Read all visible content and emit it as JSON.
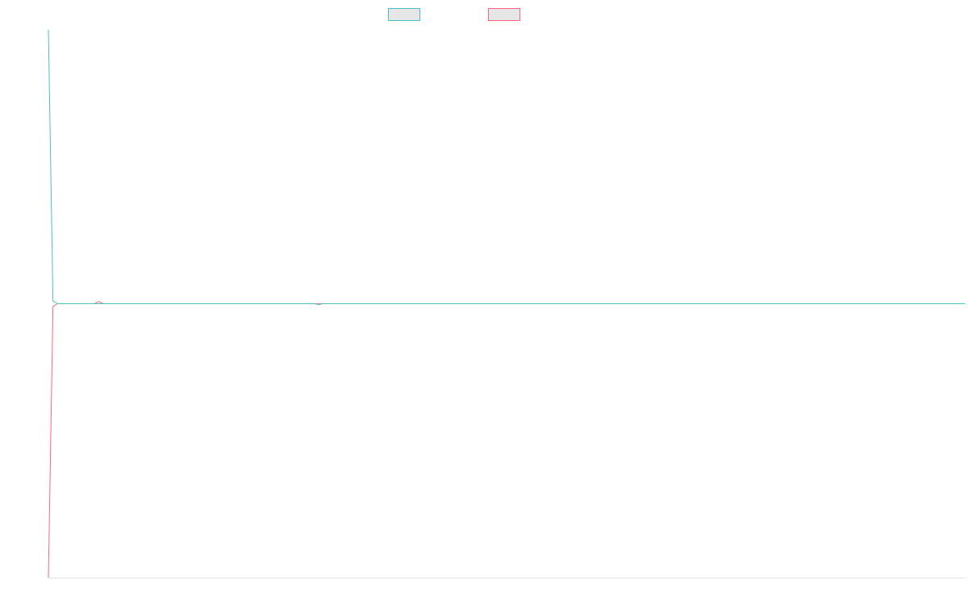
{
  "chart_data": {
    "type": "line",
    "title": "",
    "xlabel": "",
    "ylabel": "",
    "grid": false,
    "legend_position": "top-center",
    "ylim": [
      -1,
      1
    ],
    "x": [
      0,
      1,
      2,
      3,
      4,
      5,
      6,
      7,
      8,
      9,
      10,
      11,
      12,
      13,
      14,
      15,
      16,
      17,
      18,
      19,
      20,
      21,
      22,
      23,
      24,
      25,
      26,
      27,
      28,
      29,
      30,
      31,
      32,
      33,
      34,
      35,
      36,
      37,
      38,
      39,
      40,
      41,
      42,
      43,
      44,
      45,
      46,
      47,
      48,
      49,
      50,
      51,
      52,
      53,
      54,
      55,
      56,
      57,
      58,
      59,
      60,
      61,
      62,
      63,
      64,
      65,
      66,
      67,
      68,
      69,
      70,
      71,
      72,
      73,
      74,
      75,
      76,
      77,
      78,
      79,
      80,
      81,
      82,
      83,
      84,
      85,
      86,
      87,
      88,
      89,
      90,
      91,
      92,
      93,
      94,
      95,
      96,
      97,
      98,
      99,
      100,
      101,
      102,
      103,
      104,
      105,
      106,
      107,
      108,
      109,
      110,
      111,
      112,
      113,
      114,
      115,
      116,
      117,
      118,
      119,
      120,
      121,
      122,
      123,
      124,
      125,
      126,
      127,
      128,
      129,
      130,
      131,
      132,
      133,
      134,
      135,
      136,
      137,
      138,
      139,
      140,
      141,
      142,
      143,
      144,
      145,
      146,
      147,
      148,
      149,
      150,
      151,
      152,
      153,
      154,
      155,
      156,
      157,
      158,
      159,
      160,
      161,
      162,
      163,
      164,
      165,
      166,
      167,
      168,
      169,
      170,
      171,
      172,
      173,
      174,
      175,
      176,
      177,
      178,
      179,
      180,
      181,
      182,
      183,
      184,
      185,
      186,
      187,
      188,
      189,
      190,
      191,
      192,
      193,
      194,
      195,
      196,
      197,
      198,
      199,
      200
    ],
    "series": [
      {
        "name": "",
        "color": "#4bc0c0",
        "values": [
          1,
          0.01,
          0,
          0,
          0,
          0,
          0,
          0,
          0,
          0,
          0,
          0,
          0,
          0,
          0,
          0,
          0,
          0,
          0,
          0,
          0,
          0,
          0,
          0,
          0,
          0,
          0,
          0,
          0,
          0,
          0,
          0,
          0,
          0,
          0,
          0,
          0,
          0,
          0,
          0,
          0,
          0,
          0,
          0,
          0,
          0,
          0,
          0,
          0,
          0,
          0,
          0,
          0,
          0,
          0,
          0,
          0,
          0,
          0,
          -0.003,
          0,
          0,
          0,
          0,
          0,
          0,
          0,
          0,
          0,
          0,
          0,
          0,
          0,
          0,
          0,
          0,
          0,
          0,
          0,
          0,
          0,
          0,
          0,
          0,
          0,
          0,
          0,
          0,
          0,
          0,
          0,
          0,
          0,
          0,
          0,
          0,
          0,
          0,
          0,
          0,
          0,
          0,
          0,
          0,
          0,
          0,
          0,
          0,
          0,
          0,
          0,
          0,
          0,
          0,
          0,
          0,
          0,
          0,
          0,
          0,
          0,
          0,
          0,
          0,
          0,
          0,
          0,
          0,
          0,
          0,
          0,
          0,
          0,
          0,
          0,
          0,
          0,
          0,
          0,
          0,
          0,
          0,
          0,
          0,
          0,
          0,
          0,
          0,
          0,
          0,
          0,
          0,
          0,
          0,
          0,
          0,
          0,
          0,
          0,
          0,
          0,
          0,
          0,
          0,
          0,
          0,
          0,
          0,
          0,
          0,
          0,
          0,
          0,
          0,
          0,
          0,
          0,
          0,
          0,
          0,
          0,
          0,
          0,
          0,
          0,
          0,
          0,
          0,
          0,
          0,
          0,
          0,
          0,
          0,
          0,
          0,
          0,
          0,
          0,
          0,
          0
        ]
      },
      {
        "name": "",
        "color": "#ff6384",
        "values": [
          -1,
          -0.01,
          0,
          0,
          0,
          0,
          0,
          0,
          0,
          0,
          0,
          0.008,
          0,
          0,
          0,
          0,
          0,
          0,
          0,
          0,
          0,
          0,
          0,
          0,
          0,
          0,
          0,
          0,
          0,
          0,
          0,
          0,
          0,
          0,
          0,
          0,
          0,
          0,
          0,
          0,
          0,
          0,
          0,
          0,
          0,
          0,
          0,
          0,
          0,
          0,
          0,
          0,
          0,
          0,
          0,
          0,
          0,
          0,
          0,
          0,
          0,
          0,
          0,
          0,
          0,
          0,
          0,
          0,
          0,
          0,
          0,
          0,
          0,
          0,
          0,
          0,
          0,
          0,
          0,
          0,
          0,
          0,
          0,
          0,
          0,
          0,
          0,
          0,
          0,
          0,
          0,
          0,
          0,
          0,
          0,
          0,
          0,
          0,
          0,
          0,
          0,
          0,
          0,
          0,
          0,
          0,
          0,
          0,
          0,
          0,
          0,
          0,
          0,
          0,
          0,
          0,
          0,
          0,
          0,
          0,
          0,
          0,
          0,
          0,
          0,
          0,
          0,
          0,
          0,
          0,
          0,
          0,
          0,
          0,
          0,
          0,
          0,
          0,
          0,
          0,
          0,
          0,
          0,
          0,
          0,
          0,
          0,
          0,
          0,
          0,
          0,
          0,
          0,
          0,
          0,
          0,
          0,
          0,
          0,
          0,
          0,
          0,
          0,
          0,
          0,
          0,
          0,
          0,
          0,
          0,
          0,
          0,
          0,
          0,
          0,
          0,
          0,
          0,
          0,
          0,
          0,
          0,
          0,
          0,
          0,
          0,
          0,
          0,
          0,
          0,
          0,
          0,
          0,
          0,
          0,
          0,
          0,
          0,
          0,
          0,
          0
        ]
      }
    ]
  }
}
